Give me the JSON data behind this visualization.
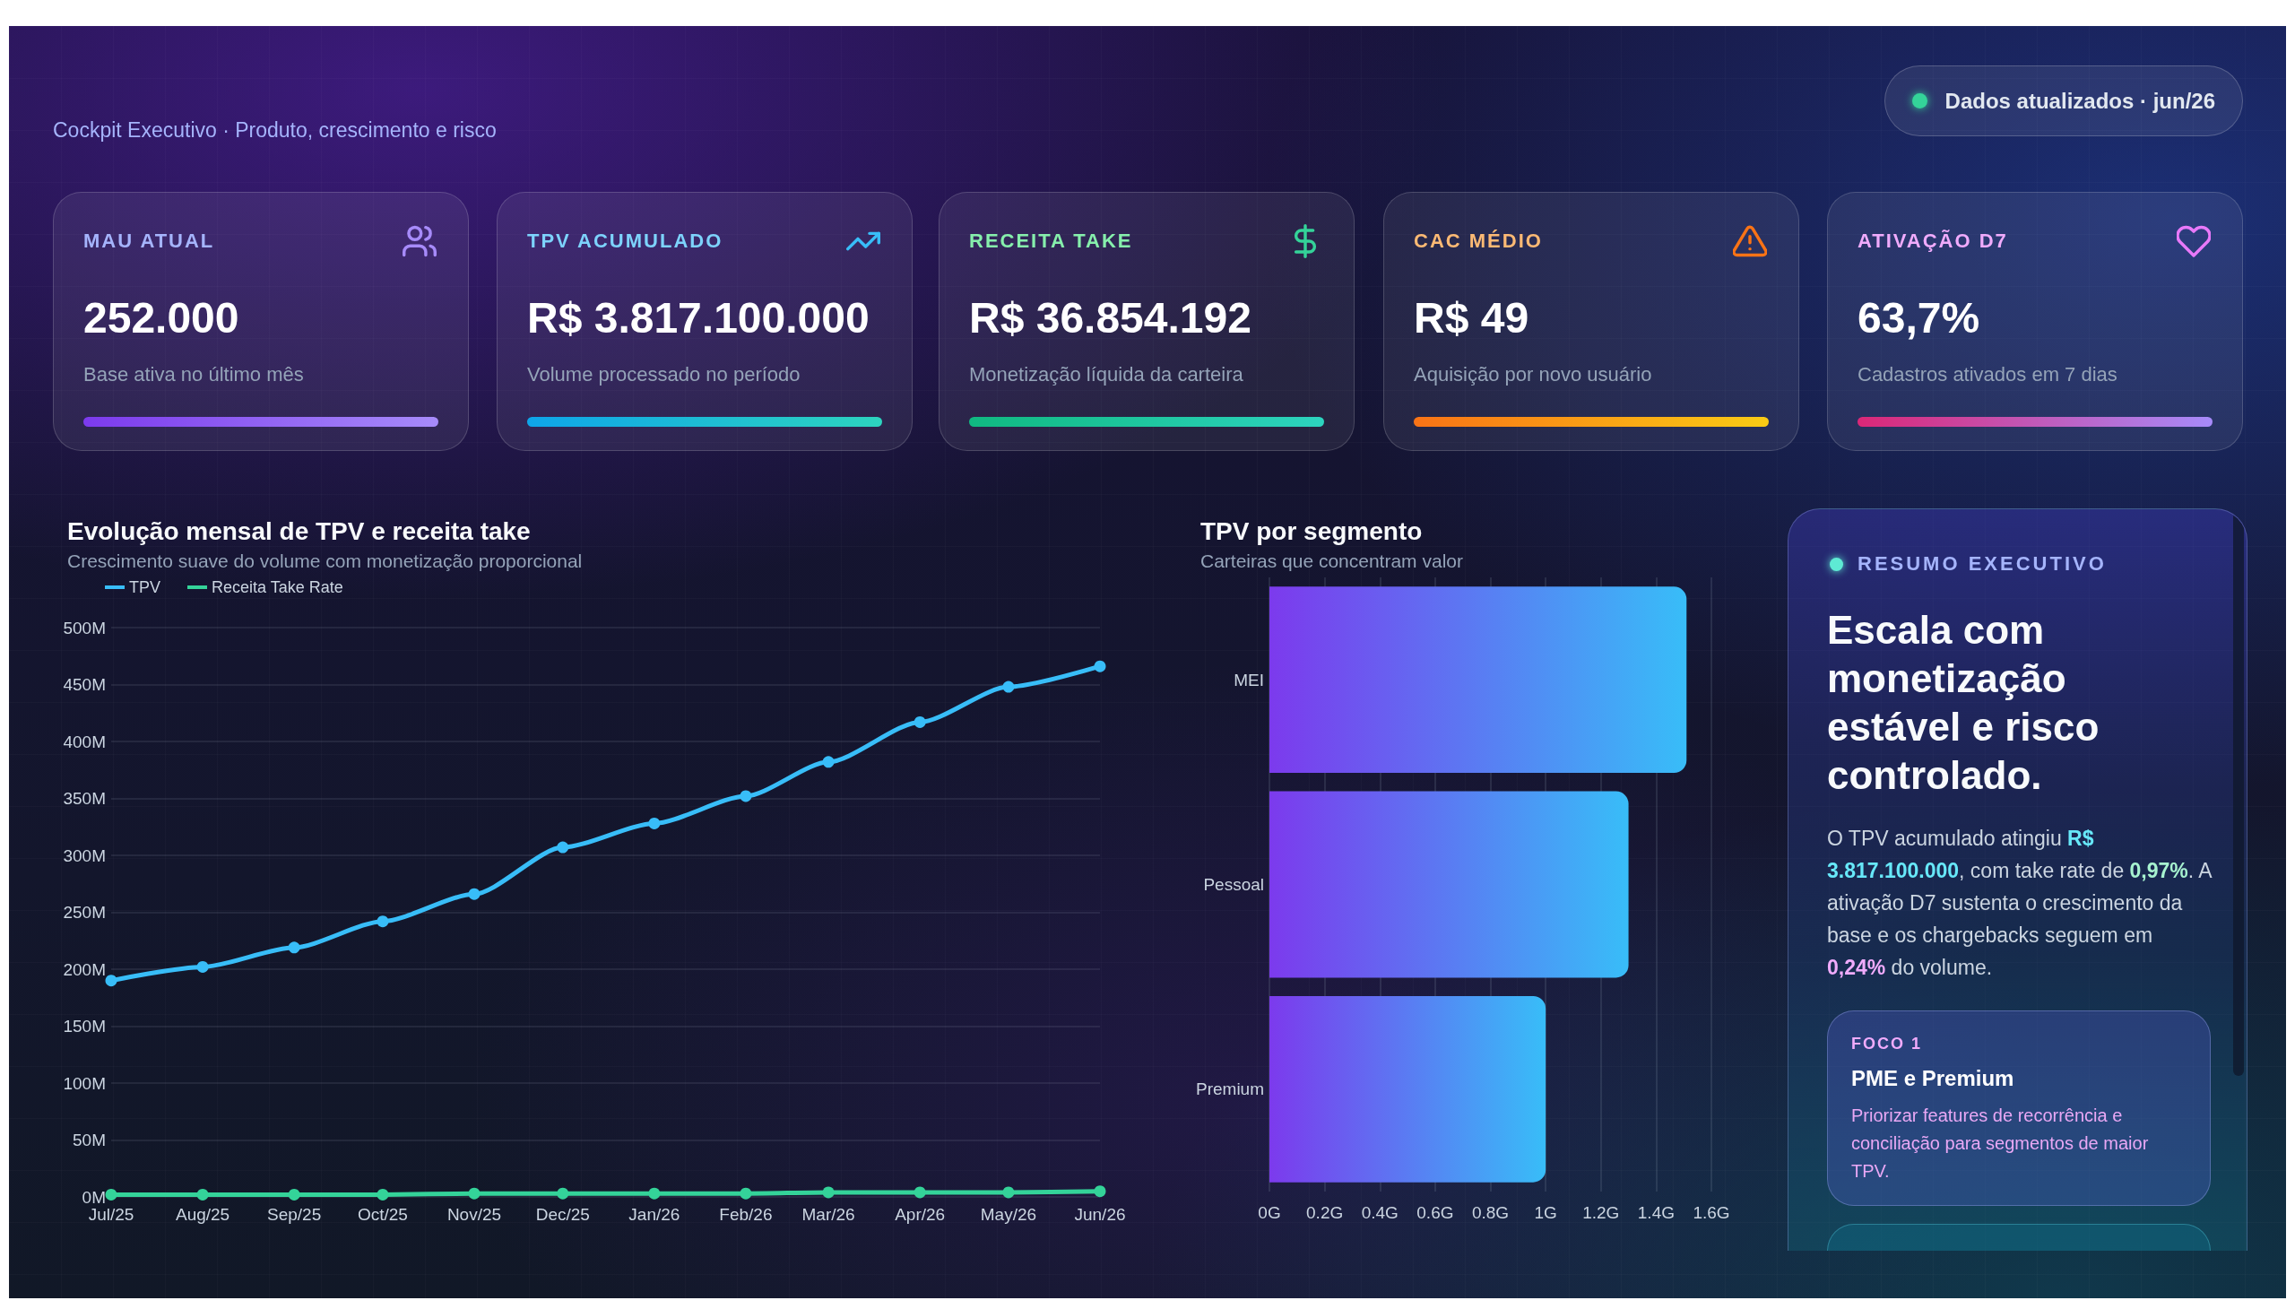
{
  "chart_data": [
    {
      "type": "other",
      "subtitle": "Cockpit Executivo · Produto, crescimento e risco",
      "annotations": [
        "Dados atualizados · jun/26"
      ]
    },
    {
      "type": "other",
      "title": "MAU ATUAL",
      "annotations": [
        "252.000",
        "Base ativa no último mês"
      ]
    },
    {
      "type": "other",
      "title": "TPV ACUMULADO",
      "annotations": [
        "R$ 3.817.100.000",
        "Volume processado no período"
      ]
    },
    {
      "type": "other",
      "title": "RECEITA TAKE",
      "annotations": [
        "R$ 36.854.192",
        "Monetização líquida da carteira"
      ]
    },
    {
      "type": "other",
      "title": "CAC MÉDIO",
      "annotations": [
        "R$ 49",
        "Aquisição por novo usuário"
      ]
    },
    {
      "type": "other",
      "title": "ATIVAÇÃO D7",
      "annotations": [
        "63,7%",
        "Cadastros ativados em 7 dias"
      ]
    },
    {
      "type": "line",
      "title": "Evolução mensal de TPV e receita take",
      "subtitle": "Crescimento suave do volume com monetização proporcional",
      "x": [
        "2025-07",
        "2025-08",
        "2025-09",
        "2025-10",
        "2025-11",
        "2025-12",
        "2026-01",
        "2026-02",
        "2026-03",
        "2026-04",
        "2026-05",
        "2026-06"
      ],
      "series": [
        {
          "name": "TPV",
          "color": "#38bdf8",
          "values": [
            190,
            202,
            219,
            242,
            266,
            307,
            328,
            352,
            382,
            417,
            448,
            466
          ]
        },
        {
          "name": "Receita Take Rate",
          "color": "#34d399",
          "values": [
            2,
            2,
            2,
            2,
            3,
            3,
            3,
            3,
            4,
            4,
            4,
            5
          ]
        }
      ],
      "xlim": [
        "2025-07",
        "2026-06"
      ],
      "xticks": [
        {
          "value": "2025-07",
          "label": "Jul/25"
        },
        {
          "value": "2025-08",
          "label": "Aug/25"
        },
        {
          "value": "2025-09",
          "label": "Sep/25"
        },
        {
          "value": "2025-10",
          "label": "Oct/25"
        },
        {
          "value": "2025-11",
          "label": "Nov/25"
        },
        {
          "value": "2025-12",
          "label": "Dec/25"
        },
        {
          "value": "2026-01",
          "label": "Jan/26"
        },
        {
          "value": "2026-02",
          "label": "Feb/26"
        },
        {
          "value": "2026-03",
          "label": "Mar/26"
        },
        {
          "value": "2026-04",
          "label": "Apr/26"
        },
        {
          "value": "2026-05",
          "label": "May/26"
        },
        {
          "value": "2026-06",
          "label": "Jun/26"
        }
      ],
      "ylim": [
        0,
        500
      ],
      "yticks": [
        {
          "value": 0,
          "label": "0M"
        },
        {
          "value": 50,
          "label": "50M"
        },
        {
          "value": 100,
          "label": "100M"
        },
        {
          "value": 150,
          "label": "150M"
        },
        {
          "value": 200,
          "label": "200M"
        },
        {
          "value": 250,
          "label": "250M"
        },
        {
          "value": 300,
          "label": "300M"
        },
        {
          "value": 350,
          "label": "350M"
        },
        {
          "value": 400,
          "label": "400M"
        },
        {
          "value": 450,
          "label": "450M"
        },
        {
          "value": 500,
          "label": "500M"
        }
      ],
      "grid": "y",
      "legend": "top left",
      "marker": "circle",
      "line_style": "solid"
    },
    {
      "type": "bar",
      "title": "TPV por segmento",
      "subtitle": "Carteiras que concentram valor",
      "categories": [
        "MEI",
        "Pessoal",
        "Premium"
      ],
      "values": [
        1.51,
        1.3,
        1.0
      ],
      "color": "#38bdf8",
      "orientation": "horizontal",
      "xlim": [
        0,
        1.6
      ],
      "xticks": [
        {
          "value": 0,
          "label": "0G"
        },
        {
          "value": 0.2,
          "label": "0.2G"
        },
        {
          "value": 0.4,
          "label": "0.4G"
        },
        {
          "value": 0.6,
          "label": "0.6G"
        },
        {
          "value": 0.8,
          "label": "0.8G"
        },
        {
          "value": 1,
          "label": "1G"
        },
        {
          "value": 1.2,
          "label": "1.2G"
        },
        {
          "value": 1.4,
          "label": "1.4G"
        },
        {
          "value": 1.6,
          "label": "1.6G"
        }
      ],
      "grid": "x"
    },
    {
      "type": "other",
      "title": "RESUMO EXECUTIVO",
      "subtitle": "Escala com monetização estável e risco controlado.",
      "annotations": [
        "O TPV acumulado atingiu R$ 3.817.100.000, com take rate de 0,97%. A ativação D7 sustenta o crescimento da base e os chargebacks seguem em 0,24% do volume.",
        "FOCO 1",
        "PME e Premium",
        "Priorizar features de recorrência e conciliação para segmentos de maior TPV."
      ]
    }
  ]
}
